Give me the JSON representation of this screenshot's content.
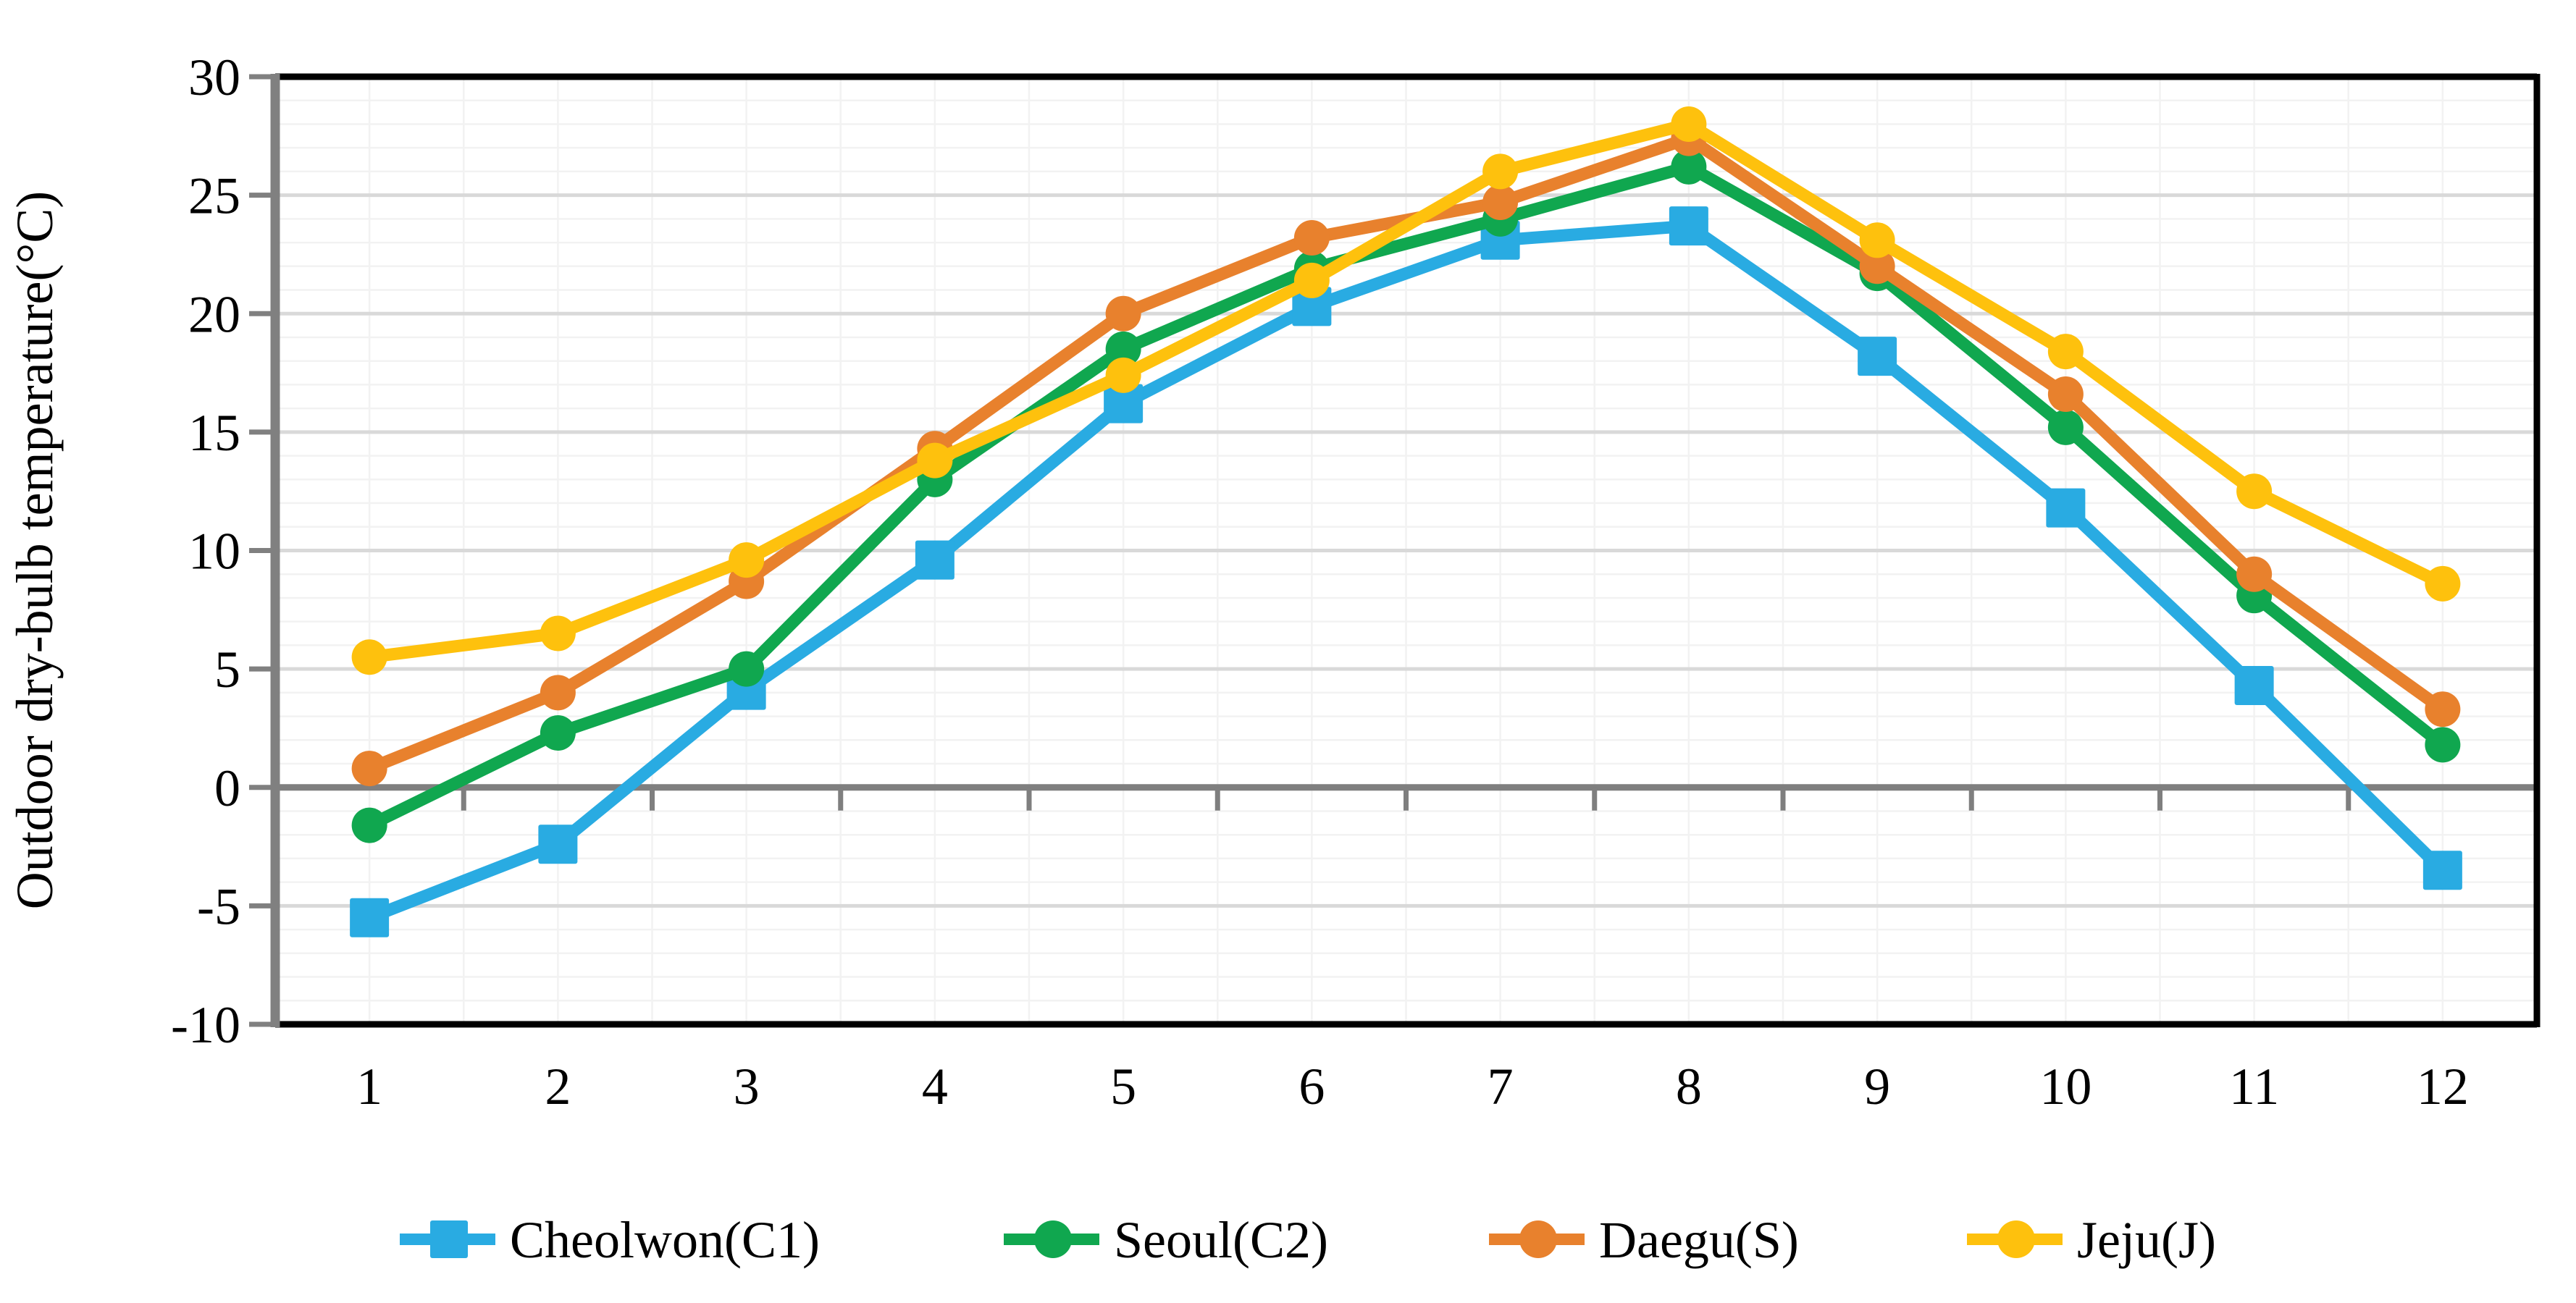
{
  "chart_data": {
    "type": "line",
    "title": "",
    "xlabel": "",
    "ylabel": "Outdoor dry-bulb temperature(°C)",
    "x": [
      1,
      2,
      3,
      4,
      5,
      6,
      7,
      8,
      9,
      10,
      11,
      12
    ],
    "x_tick_labels": [
      "1",
      "2",
      "3",
      "4",
      "5",
      "6",
      "7",
      "8",
      "9",
      "10",
      "11",
      "12"
    ],
    "y_ticks": [
      30,
      25,
      20,
      15,
      10,
      5,
      0,
      -5,
      -10
    ],
    "y_tick_labels": [
      "30",
      "25",
      "20",
      "15",
      "10",
      "5",
      "0",
      "-5",
      "-10"
    ],
    "ylim": [
      -10,
      30
    ],
    "y_major_step": 5,
    "y_minor_step": 1,
    "grid": true,
    "legend_position": "bottom",
    "series": [
      {
        "name": "Cheolwon(C1)",
        "marker": "square",
        "color": "#29ABE2",
        "values": [
          -5.5,
          -2.4,
          4.1,
          9.6,
          16.2,
          20.3,
          23.1,
          23.7,
          18.2,
          11.8,
          4.3,
          -3.5
        ]
      },
      {
        "name": "Seoul(C2)",
        "marker": "circle",
        "color": "#10A74F",
        "values": [
          -1.6,
          2.3,
          5.0,
          13.0,
          18.5,
          21.9,
          24.0,
          26.2,
          21.7,
          15.2,
          8.1,
          1.8
        ]
      },
      {
        "name": "Daegu(S)",
        "marker": "circle",
        "color": "#E8812D",
        "values": [
          0.8,
          4.0,
          8.7,
          14.3,
          20.0,
          23.2,
          24.7,
          27.4,
          22.0,
          16.6,
          9.0,
          3.3
        ]
      },
      {
        "name": "Jeju(J)",
        "marker": "circle",
        "color": "#FEC10D",
        "values": [
          5.5,
          6.5,
          9.6,
          13.8,
          17.4,
          21.4,
          26.0,
          28.0,
          23.1,
          18.4,
          12.5,
          8.6
        ]
      }
    ],
    "style": {
      "minor_grid_color": "#F2F2F2",
      "major_grid_color": "#D9D9D9",
      "zero_line_color": "#7F7F7F",
      "axis_color": "#808080",
      "border_color": "#000000"
    }
  }
}
